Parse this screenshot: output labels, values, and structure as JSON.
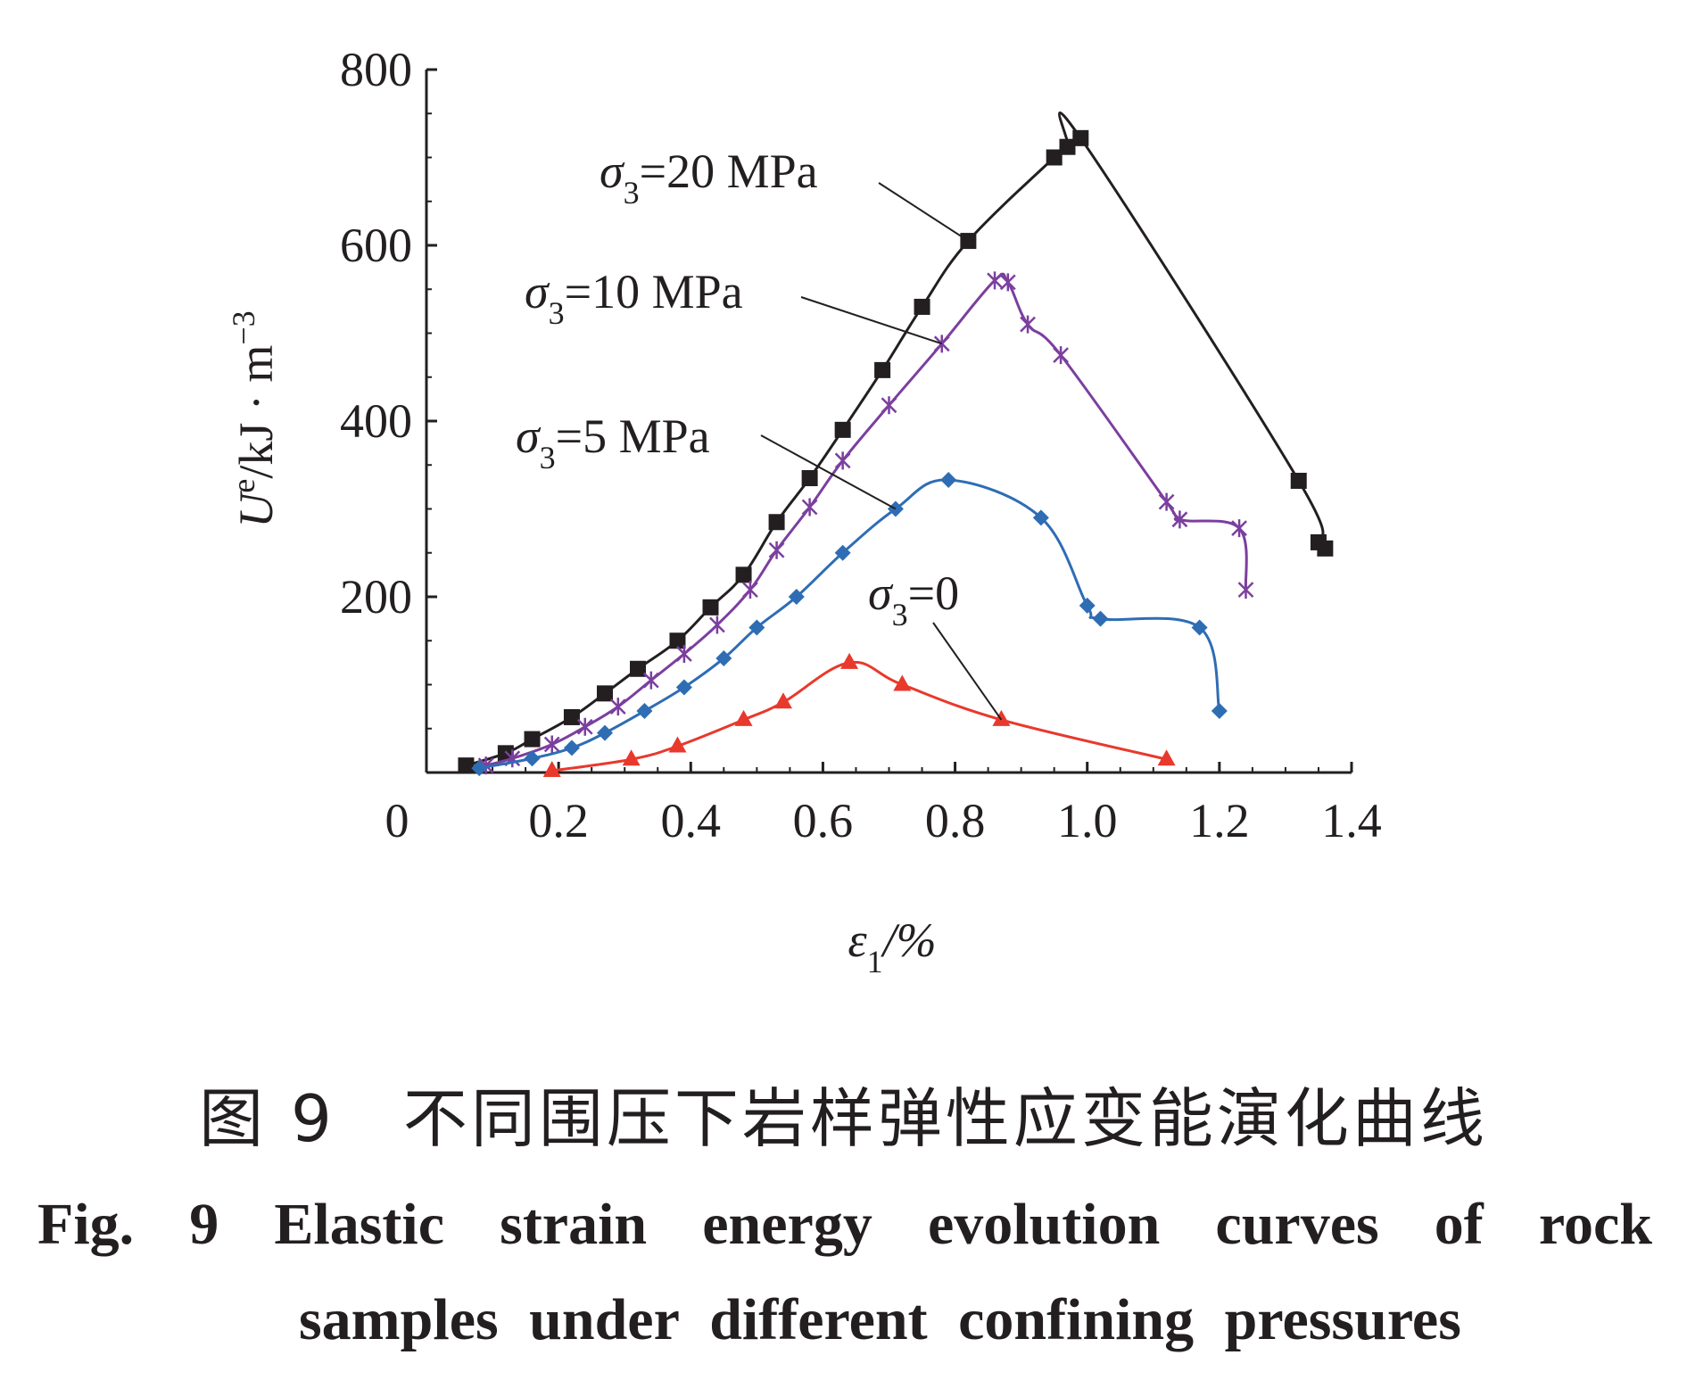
{
  "chart_data": {
    "type": "line",
    "xlabel_main": "ε",
    "xlabel_sub": "1",
    "xlabel_unit": "/%",
    "ylabel_main": "U",
    "ylabel_sup": "e",
    "ylabel_unit": "/kJ · m",
    "ylabel_unit_sup": "−3",
    "xlim": [
      0,
      1.4
    ],
    "ylim": [
      0,
      800
    ],
    "x_ticks": [
      "0",
      "0.2",
      "0.4",
      "0.6",
      "0.8",
      "1.0",
      "1.2",
      "1.4"
    ],
    "y_ticks": [
      "200",
      "400",
      "600",
      "800"
    ],
    "grid": false,
    "series": [
      {
        "label_main": "σ",
        "label_sub": "3",
        "label_rest": "=20 MPa",
        "color": "#231f20",
        "marker": "square",
        "x": [
          0.06,
          0.12,
          0.16,
          0.22,
          0.27,
          0.32,
          0.38,
          0.43,
          0.48,
          0.53,
          0.58,
          0.63,
          0.69,
          0.75,
          0.82,
          0.95,
          0.97,
          0.99,
          1.32,
          1.35,
          1.36
        ],
        "y": [
          8,
          22,
          38,
          63,
          90,
          118,
          150,
          188,
          225,
          285,
          335,
          390,
          458,
          530,
          605,
          700,
          712,
          722,
          332,
          262,
          255
        ]
      },
      {
        "label_main": "σ",
        "label_sub": "3",
        "label_rest": "=10 MPa",
        "color": "#7b3f9e",
        "marker": "cross",
        "x": [
          0.09,
          0.13,
          0.19,
          0.24,
          0.29,
          0.34,
          0.39,
          0.44,
          0.49,
          0.53,
          0.58,
          0.63,
          0.7,
          0.78,
          0.86,
          0.88,
          0.91,
          0.96,
          1.12,
          1.14,
          1.23,
          1.24
        ],
        "y": [
          8,
          16,
          32,
          52,
          75,
          105,
          135,
          168,
          208,
          253,
          302,
          355,
          418,
          488,
          560,
          558,
          510,
          475,
          308,
          288,
          278,
          208
        ]
      },
      {
        "label_main": "σ",
        "label_sub": "3",
        "label_rest": "=5 MPa",
        "color": "#2e6db4",
        "marker": "diamond",
        "x": [
          0.08,
          0.16,
          0.22,
          0.27,
          0.33,
          0.39,
          0.45,
          0.5,
          0.56,
          0.63,
          0.71,
          0.79,
          0.93,
          1.0,
          1.02,
          1.17,
          1.2
        ],
        "y": [
          5,
          16,
          28,
          45,
          70,
          97,
          130,
          165,
          200,
          250,
          300,
          333,
          290,
          190,
          175,
          165,
          70
        ]
      },
      {
        "label_main": "σ",
        "label_sub": "3",
        "label_rest": "=0",
        "color": "#e8392c",
        "marker": "triangle",
        "x": [
          0.19,
          0.31,
          0.38,
          0.48,
          0.54,
          0.64,
          0.72,
          0.87,
          1.12
        ],
        "y": [
          2,
          15,
          30,
          60,
          80,
          125,
          100,
          60,
          15
        ]
      }
    ]
  },
  "caption": {
    "cn": "图 9　不同围压下岩样弹性应变能演化曲线",
    "en_line1": "Fig. 9    Elastic strain energy evolution curves of rock",
    "en_line2": "samples under different confining pressures"
  }
}
